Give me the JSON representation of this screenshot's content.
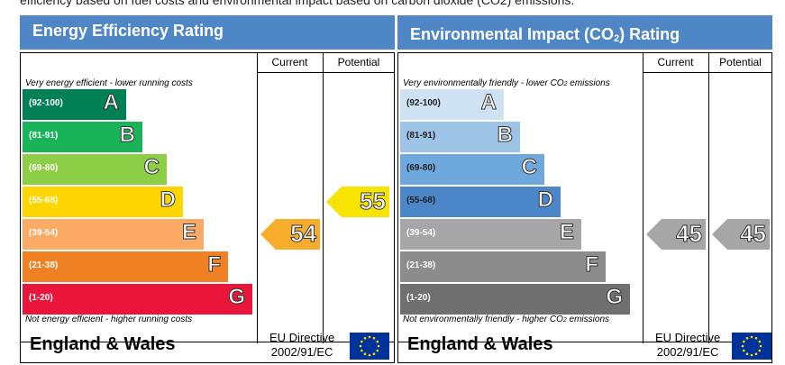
{
  "intro_text": "efficiency based on fuel costs and environmental impact based on carbon dioxide (CO2) emissions.",
  "energy": {
    "title": "Energy Efficiency Rating",
    "col_current": "Current",
    "col_potential": "Potential",
    "top_note": "Very energy efficient - lower running costs",
    "bottom_note": "Not energy efficient - higher running costs",
    "bands": [
      {
        "range": "(92-100)",
        "letter": "A",
        "color": "#008054"
      },
      {
        "range": "(81-91)",
        "letter": "B",
        "color": "#19b459"
      },
      {
        "range": "(69-80)",
        "letter": "C",
        "color": "#8dce46"
      },
      {
        "range": "(55-68)",
        "letter": "D",
        "color": "#ffd500"
      },
      {
        "range": "(39-54)",
        "letter": "E",
        "color": "#fcaa65"
      },
      {
        "range": "(21-38)",
        "letter": "F",
        "color": "#ef8023"
      },
      {
        "range": "(1-20)",
        "letter": "G",
        "color": "#e9153b"
      }
    ],
    "current": {
      "value": "54",
      "band": "E",
      "color": "#f7ac2b"
    },
    "potential": {
      "value": "55",
      "band": "D",
      "color": "#f7e400"
    }
  },
  "environment": {
    "title_main": "Environmental Impact (CO",
    "title_sub": "2",
    "title_end": ") Rating",
    "col_current": "Current",
    "col_potential": "Potential",
    "top_note_main": "Very environmentally friendly - lower CO",
    "top_note_sub": "2",
    "top_note_end": " emissions",
    "bottom_note_main": "Not environmentally friendly - higher CO",
    "bottom_note_sub": "2",
    "bottom_note_end": " emissions",
    "bands": [
      {
        "range": "(92-100)",
        "letter": "A",
        "color": "#cfe2f3"
      },
      {
        "range": "(81-91)",
        "letter": "B",
        "color": "#9dc3e6"
      },
      {
        "range": "(69-80)",
        "letter": "C",
        "color": "#6fa8dc"
      },
      {
        "range": "(55-68)",
        "letter": "D",
        "color": "#4a86c8"
      },
      {
        "range": "(39-54)",
        "letter": "E",
        "color": "#a6a6a6"
      },
      {
        "range": "(21-38)",
        "letter": "F",
        "color": "#8c8c8c"
      },
      {
        "range": "(1-20)",
        "letter": "G",
        "color": "#707070"
      }
    ],
    "current": {
      "value": "45",
      "band": "E",
      "color": "#a6a6a6"
    },
    "potential": {
      "value": "45",
      "band": "E",
      "color": "#a6a6a6"
    }
  },
  "footer": {
    "country": "England & Wales",
    "directive_line1": "EU Directive",
    "directive_line2": "2002/91/EC",
    "flag_color": "#003399",
    "star_color": "#ffdd00"
  }
}
